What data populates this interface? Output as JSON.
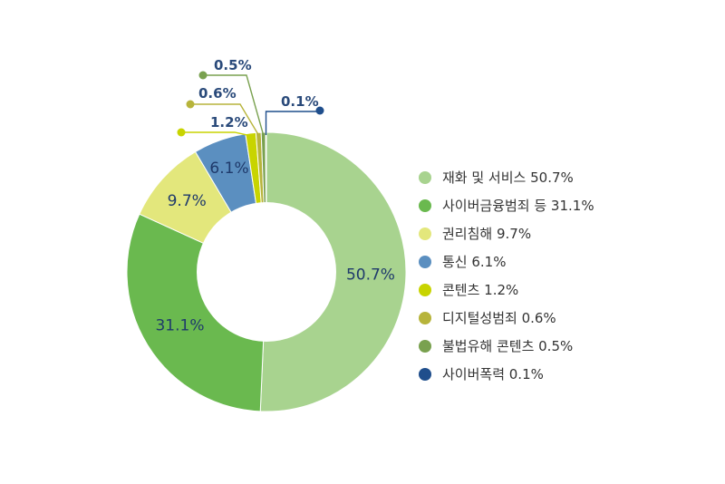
{
  "chart_data": {
    "type": "pie",
    "donut": true,
    "title": "",
    "slices": [
      {
        "key": "service",
        "label": "재화 및 서비스",
        "value": 50.7,
        "value_label": "50.7%",
        "legend": "재화 및 서비스 50.7%",
        "color": "#a8d38f"
      },
      {
        "key": "finance",
        "label": "사이버금융범죄 등",
        "value": 31.1,
        "value_label": "31.1%",
        "legend": "사이버금융범죄 등 31.1%",
        "color": "#6ab94f"
      },
      {
        "key": "rights",
        "label": "권리침해",
        "value": 9.7,
        "value_label": "9.7%",
        "legend": "권리침해 9.7%",
        "color": "#e3e77c"
      },
      {
        "key": "telecom",
        "label": "통신",
        "value": 6.1,
        "value_label": "6.1%",
        "legend": "통신 6.1%",
        "color": "#5b8fc0"
      },
      {
        "key": "contents",
        "label": "콘텐츠",
        "value": 1.2,
        "value_label": "1.2%",
        "legend": "콘텐츠 1.2%",
        "color": "#c8d400"
      },
      {
        "key": "digital",
        "label": "디지털성범죄",
        "value": 0.6,
        "value_label": "0.6%",
        "legend": "디지털성범죄 0.6%",
        "color": "#b7b43b"
      },
      {
        "key": "illegal",
        "label": "불법유해 콘텐츠",
        "value": 0.5,
        "value_label": "0.5%",
        "legend": "불법유해 콘텐츠 0.5%",
        "color": "#79a14f"
      },
      {
        "key": "violence",
        "label": "사이버폭력",
        "value": 0.1,
        "value_label": "0.1%",
        "legend": "사이버폭력 0.1%",
        "color": "#1f4e8c"
      }
    ],
    "legend_position": "right"
  }
}
